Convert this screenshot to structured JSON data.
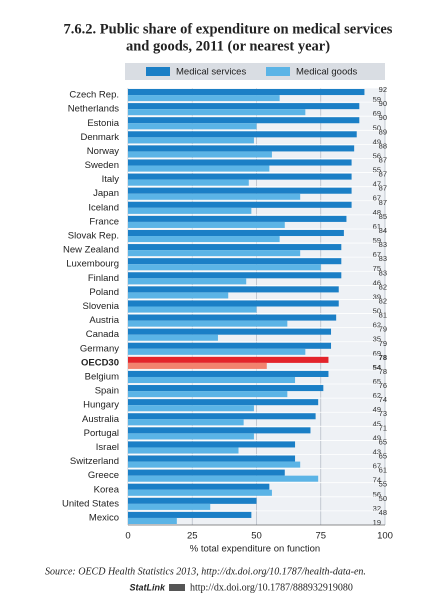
{
  "chart_data": {
    "type": "hbar",
    "title": "7.6.2.  Public share of expenditure on medical services",
    "subtitle": "and goods, 2011 (or nearest year)",
    "categories": [
      "Czech Rep.",
      "Netherlands",
      "Estonia",
      "Denmark",
      "Norway",
      "Sweden",
      "Italy",
      "Japan",
      "Iceland",
      "France",
      "Slovak Rep.",
      "New Zealand",
      "Luxembourg",
      "Finland",
      "Poland",
      "Slovenia",
      "Austria",
      "Canada",
      "Germany",
      "OECD30",
      "Belgium",
      "Spain",
      "Hungary",
      "Australia",
      "Portugal",
      "Israel",
      "Switzerland",
      "Greece",
      "Korea",
      "United States",
      "Mexico"
    ],
    "series": [
      {
        "name": "Medical services",
        "color": "#1b7fc6",
        "highlight_color": "#e3242b",
        "values": [
          92,
          90,
          90,
          89,
          88,
          87,
          87,
          87,
          87,
          85,
          84,
          83,
          83,
          83,
          82,
          82,
          81,
          79,
          79,
          78,
          78,
          76,
          74,
          73,
          71,
          65,
          65,
          61,
          55,
          50,
          48
        ]
      },
      {
        "name": "Medical goods",
        "color": "#5bb4e6",
        "highlight_color": "#f2826f",
        "values": [
          59,
          69,
          50,
          49,
          56,
          55,
          47,
          67,
          48,
          61,
          59,
          67,
          75,
          46,
          39,
          50,
          62,
          35,
          69,
          54,
          65,
          62,
          49,
          45,
          49,
          43,
          67,
          74,
          56,
          32,
          19
        ]
      }
    ],
    "highlight": "OECD30",
    "xlim": [
      0,
      100
    ],
    "xticks": [
      0,
      25,
      50,
      75,
      100
    ],
    "xlabel": "% total expenditure on function",
    "grid": true,
    "source": "Source: OECD Health Statistics 2013, http://dx.doi.org/10.1787/health-data-en.",
    "statlink_label": "StatLink",
    "statlink_url": "http://dx.doi.org/10.1787/888932919080"
  }
}
